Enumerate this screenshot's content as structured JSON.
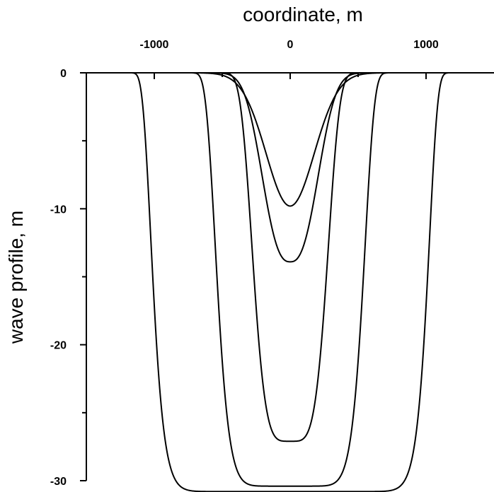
{
  "chart_data": {
    "type": "line",
    "xlabel": "coordinate, m",
    "ylabel": "wave profile, m",
    "xlim": [
      -1500,
      1500
    ],
    "ylim": [
      -30,
      0
    ],
    "x_major_ticks": [
      -1000,
      0,
      1000
    ],
    "x_minor_ticks": [
      -500,
      500
    ],
    "y_major_ticks": [
      0,
      -10,
      -20,
      -30
    ],
    "y_minor_ticks": [
      -5,
      -15,
      -25
    ],
    "x_tick_labels": [
      "-1000",
      "0",
      "1000"
    ],
    "y_tick_labels": [
      "0",
      "-10",
      "-20",
      "-30"
    ],
    "grid": false,
    "legend": "none",
    "line_color": "#000000",
    "series": [
      {
        "amplitude": -9.8,
        "half_width": 250,
        "flatness": 1
      },
      {
        "amplitude": -13.9,
        "half_width": 250,
        "flatness": 1.3
      },
      {
        "amplitude": -27.1,
        "half_width": 300,
        "flatness": 2.2
      },
      {
        "amplitude": -30.4,
        "half_width": 560,
        "flatness": 4.5
      },
      {
        "amplitude": -30.8,
        "half_width": 1030,
        "flatness": 9
      }
    ]
  }
}
